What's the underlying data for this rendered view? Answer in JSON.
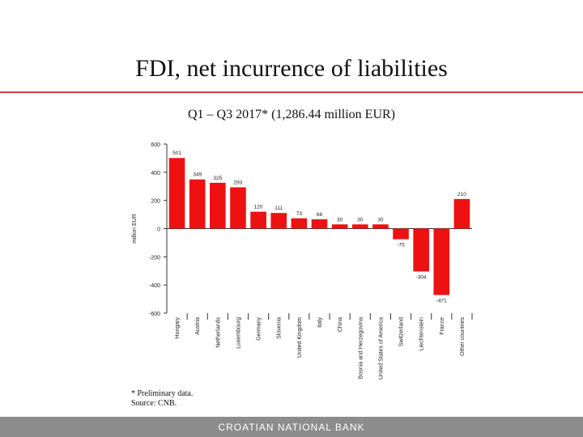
{
  "slide": {
    "title": "FDI, net incurrence of liabilities",
    "subtitle": "Q1 – Q3 2017* (1,286.44 million EUR)",
    "footnote_1": "* Preliminary data.",
    "footnote_2": "Source: CNB.",
    "footer": "CROATIAN NATIONAL BANK"
  },
  "colors": {
    "bar": "#ee1111",
    "rule": "#d23a3a",
    "footer": "#8c8c8c"
  },
  "chart_data": {
    "type": "bar",
    "ylabel": "million EUR",
    "ylim": [
      -600,
      600
    ],
    "yticks": [
      600,
      400,
      200,
      0,
      -200,
      -400,
      -600
    ],
    "grid": false,
    "categories": [
      "Hungary",
      "Austria",
      "Netherlands",
      "Luxembourg",
      "Germany",
      "Slovenia",
      "United Kingdom",
      "Italy",
      "China",
      "Bosnia and Herzegovina",
      "United States of America",
      "Switzerland",
      "Liechtenstein",
      "France",
      "Other countries"
    ],
    "values": [
      501,
      349,
      325,
      293,
      120,
      111,
      73,
      66,
      30,
      30,
      30,
      -75,
      -304,
      -471,
      210
    ],
    "data_labels": [
      "501",
      "349",
      "325",
      "293",
      "120",
      "111",
      "73",
      "66",
      "30",
      "30",
      "30",
      "-75",
      "-304",
      "-471",
      "210"
    ]
  }
}
